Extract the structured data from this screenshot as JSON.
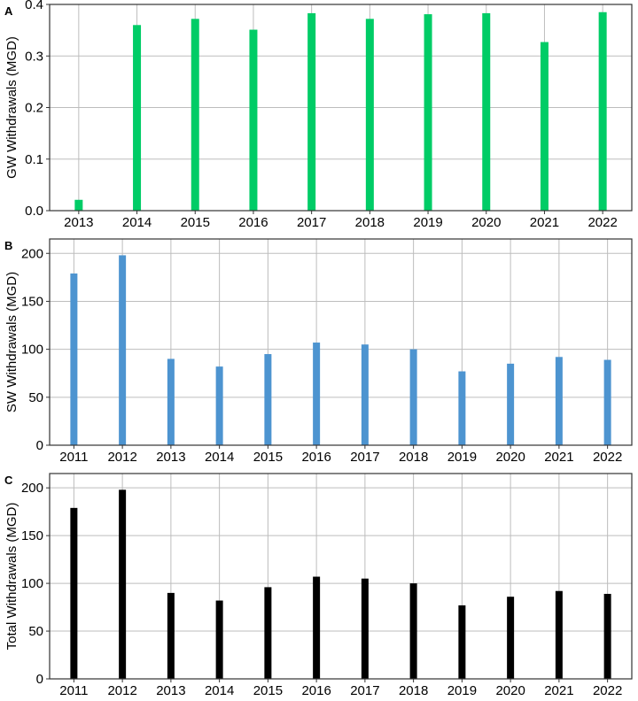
{
  "chart_data": [
    {
      "panel": "A",
      "type": "bar",
      "ylabel": "GW Withdrawals (MGD)",
      "xlabel": "",
      "categories": [
        "2013",
        "2014",
        "2015",
        "2016",
        "2017",
        "2018",
        "2019",
        "2020",
        "2021",
        "2022"
      ],
      "values": [
        0.021,
        0.36,
        0.372,
        0.351,
        0.383,
        0.372,
        0.381,
        0.383,
        0.327,
        0.385
      ],
      "ylim": [
        0,
        0.4
      ],
      "yticks": [
        0.0,
        0.1,
        0.2,
        0.3,
        0.4
      ],
      "ytick_labels": [
        "0.0",
        "0.1",
        "0.2",
        "0.3",
        "0.4"
      ],
      "color": "#00CC66",
      "grid": true
    },
    {
      "panel": "B",
      "type": "bar",
      "ylabel": "SW Withdrawals (MGD)",
      "xlabel": "",
      "categories": [
        "2011",
        "2012",
        "2013",
        "2014",
        "2015",
        "2016",
        "2017",
        "2018",
        "2019",
        "2020",
        "2021",
        "2022"
      ],
      "values": [
        179,
        198,
        90,
        82,
        95,
        107,
        105,
        100,
        77,
        85,
        92,
        89
      ],
      "ylim": [
        0,
        215
      ],
      "yticks": [
        0,
        50,
        100,
        150,
        200
      ],
      "ytick_labels": [
        "0",
        "50",
        "100",
        "150",
        "200"
      ],
      "color": "#4D94D0",
      "grid": true
    },
    {
      "panel": "C",
      "type": "bar",
      "ylabel": "Total Withdrawals (MGD)",
      "xlabel": "",
      "categories": [
        "2011",
        "2012",
        "2013",
        "2014",
        "2015",
        "2016",
        "2017",
        "2018",
        "2019",
        "2020",
        "2021",
        "2022"
      ],
      "values": [
        179,
        198,
        90,
        82,
        96,
        107,
        105,
        100,
        77,
        86,
        92,
        89
      ],
      "ylim": [
        0,
        215
      ],
      "yticks": [
        0,
        50,
        100,
        150,
        200
      ],
      "ytick_labels": [
        "0",
        "50",
        "100",
        "150",
        "200"
      ],
      "color": "#000000",
      "grid": true
    }
  ]
}
